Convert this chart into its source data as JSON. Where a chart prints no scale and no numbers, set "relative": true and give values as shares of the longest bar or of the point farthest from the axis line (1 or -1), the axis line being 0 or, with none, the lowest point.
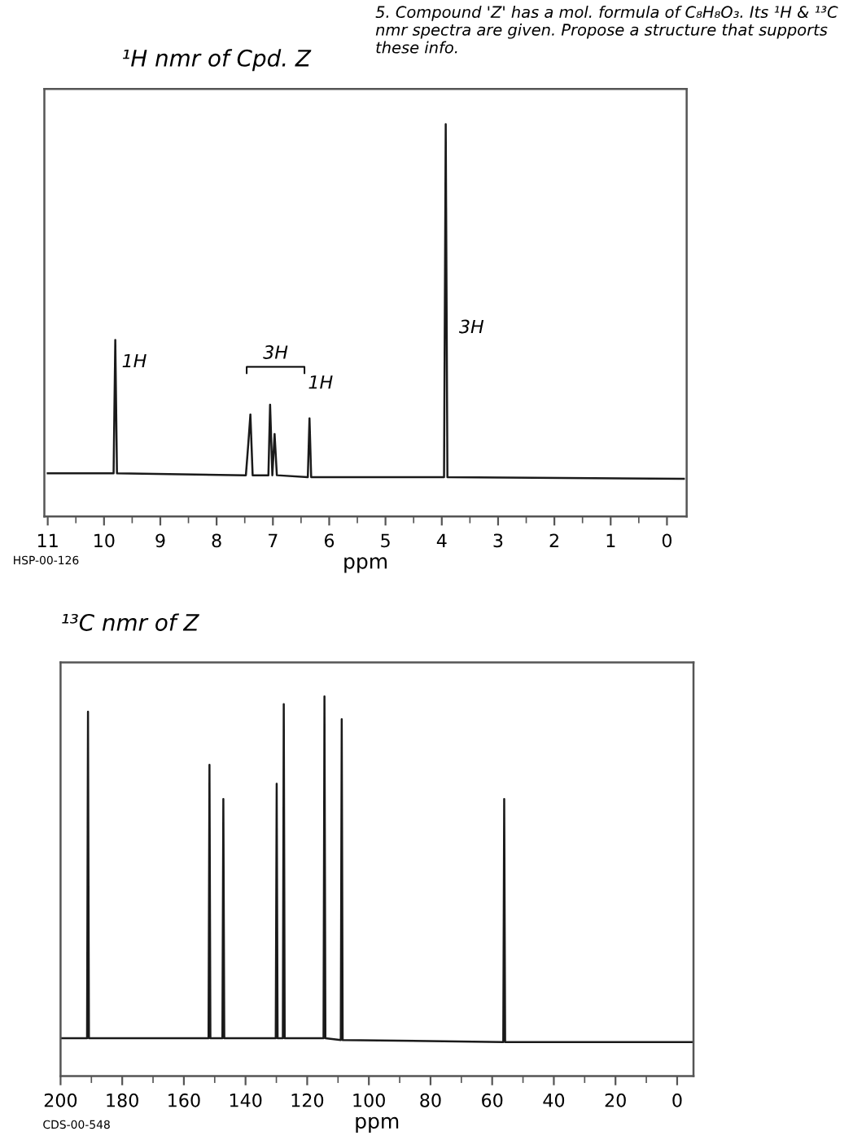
{
  "chart_data": [
    {
      "type": "line",
      "relative": true,
      "title": "¹H nmr of Cpd. Z",
      "xlabel": "ppm",
      "xlim": [
        11.06,
        -0.35
      ],
      "xticks": [
        11,
        10,
        9,
        8,
        7,
        6,
        5,
        4,
        3,
        2,
        1,
        0,
        {
          "value": 10.5,
          "label": null
        },
        {
          "value": 9.5,
          "label": null
        },
        {
          "value": 8.5,
          "label": null
        },
        {
          "value": 7.5,
          "label": null
        },
        {
          "value": 6.5,
          "label": null
        },
        {
          "value": 5.5,
          "label": null
        },
        {
          "value": 4.5,
          "label": null
        },
        {
          "value": 3.5,
          "label": null
        },
        {
          "value": 2.5,
          "label": null
        },
        {
          "value": 1.5,
          "label": null
        },
        {
          "value": 0.5,
          "label": null
        }
      ],
      "tick_labels": "x",
      "grid": false,
      "legend": false,
      "marker": "none",
      "line_style": "solid",
      "series": [
        {
          "color": "#1a1a1a",
          "x": [
            11.0,
            9.83,
            9.8,
            9.77,
            7.48,
            7.44,
            7.4,
            7.36,
            7.08,
            7.05,
            7.01,
            6.97,
            6.93,
            6.38,
            6.35,
            6.32,
            3.96,
            3.93,
            3.9,
            -0.3
          ],
          "values": [
            0.11,
            0.11,
            0.45,
            0.11,
            0.105,
            0.18,
            0.26,
            0.105,
            0.105,
            0.285,
            0.105,
            0.21,
            0.105,
            0.1,
            0.25,
            0.1,
            0.1,
            1.0,
            0.1,
            0.096
          ]
        }
      ],
      "annotations": [
        "5. Compound 'Z' has a mol. formula of C₈H₈O₃. Its ¹H & ¹³C nmr spectra are given. Propose a structure that supports these info.",
        "HSP-00-126",
        "1H",
        "3H",
        "1H",
        "3H"
      ]
    },
    {
      "type": "line",
      "relative": true,
      "title": "¹³C nmr of Z",
      "xlabel": "ppm",
      "xlim": [
        200,
        -5.3
      ],
      "xticks": [
        200,
        180,
        160,
        140,
        120,
        100,
        80,
        60,
        40,
        20,
        0,
        {
          "value": 190,
          "label": null
        },
        {
          "value": 170,
          "label": null
        },
        {
          "value": 150,
          "label": null
        },
        {
          "value": 130,
          "label": null
        },
        {
          "value": 110,
          "label": null
        },
        {
          "value": 90,
          "label": null
        },
        {
          "value": 70,
          "label": null
        },
        {
          "value": 50,
          "label": null
        },
        {
          "value": 30,
          "label": null
        },
        {
          "value": 10,
          "label": null
        }
      ],
      "tick_labels": "x",
      "grid": false,
      "legend": false,
      "marker": "none",
      "line_style": "solid",
      "series": [
        {
          "color": "#1a1a1a",
          "x": [
            200,
            191.4,
            191.1,
            190.8,
            152.0,
            151.7,
            151.4,
            147.5,
            147.2,
            146.9,
            130.2,
            129.9,
            129.6,
            127.9,
            127.6,
            127.3,
            114.7,
            114.4,
            114.1,
            109.1,
            108.8,
            108.5,
            56.4,
            56.1,
            55.8,
            -5
          ],
          "values": [
            0.1,
            0.1,
            0.96,
            0.1,
            0.1,
            0.82,
            0.1,
            0.1,
            0.73,
            0.1,
            0.1,
            0.77,
            0.1,
            0.1,
            0.98,
            0.1,
            0.1,
            1.0,
            0.1,
            0.095,
            0.94,
            0.095,
            0.09,
            0.73,
            0.09,
            0.09
          ]
        }
      ],
      "annotations": [
        "CDS-00-548"
      ]
    }
  ]
}
